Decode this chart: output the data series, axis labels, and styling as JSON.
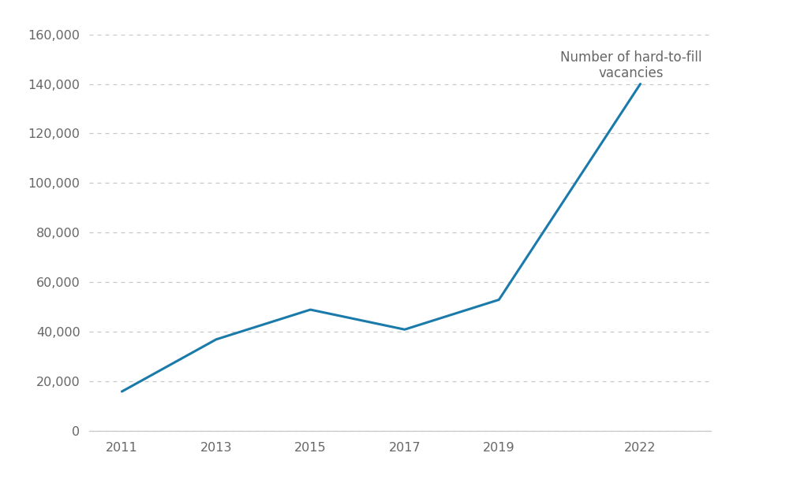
{
  "years": [
    2011,
    2013,
    2015,
    2017,
    2019,
    2022
  ],
  "values": [
    16000,
    37000,
    49000,
    41000,
    53000,
    140000
  ],
  "line_color": "#1a7aaa",
  "line_width": 2.2,
  "background_color": "#ffffff",
  "grid_color": "#c8c8c8",
  "ylim": [
    0,
    160000
  ],
  "yticks": [
    0,
    20000,
    40000,
    60000,
    80000,
    100000,
    120000,
    140000,
    160000
  ],
  "xticks": [
    2011,
    2013,
    2015,
    2017,
    2019,
    2022
  ],
  "annotation_text": "Number of hard-to-fill\nvacancies",
  "tick_label_color": "#666666",
  "tick_fontsize": 11.5,
  "annotation_fontsize": 12,
  "figsize": [
    10.24,
    6.22
  ],
  "dpi": 100
}
